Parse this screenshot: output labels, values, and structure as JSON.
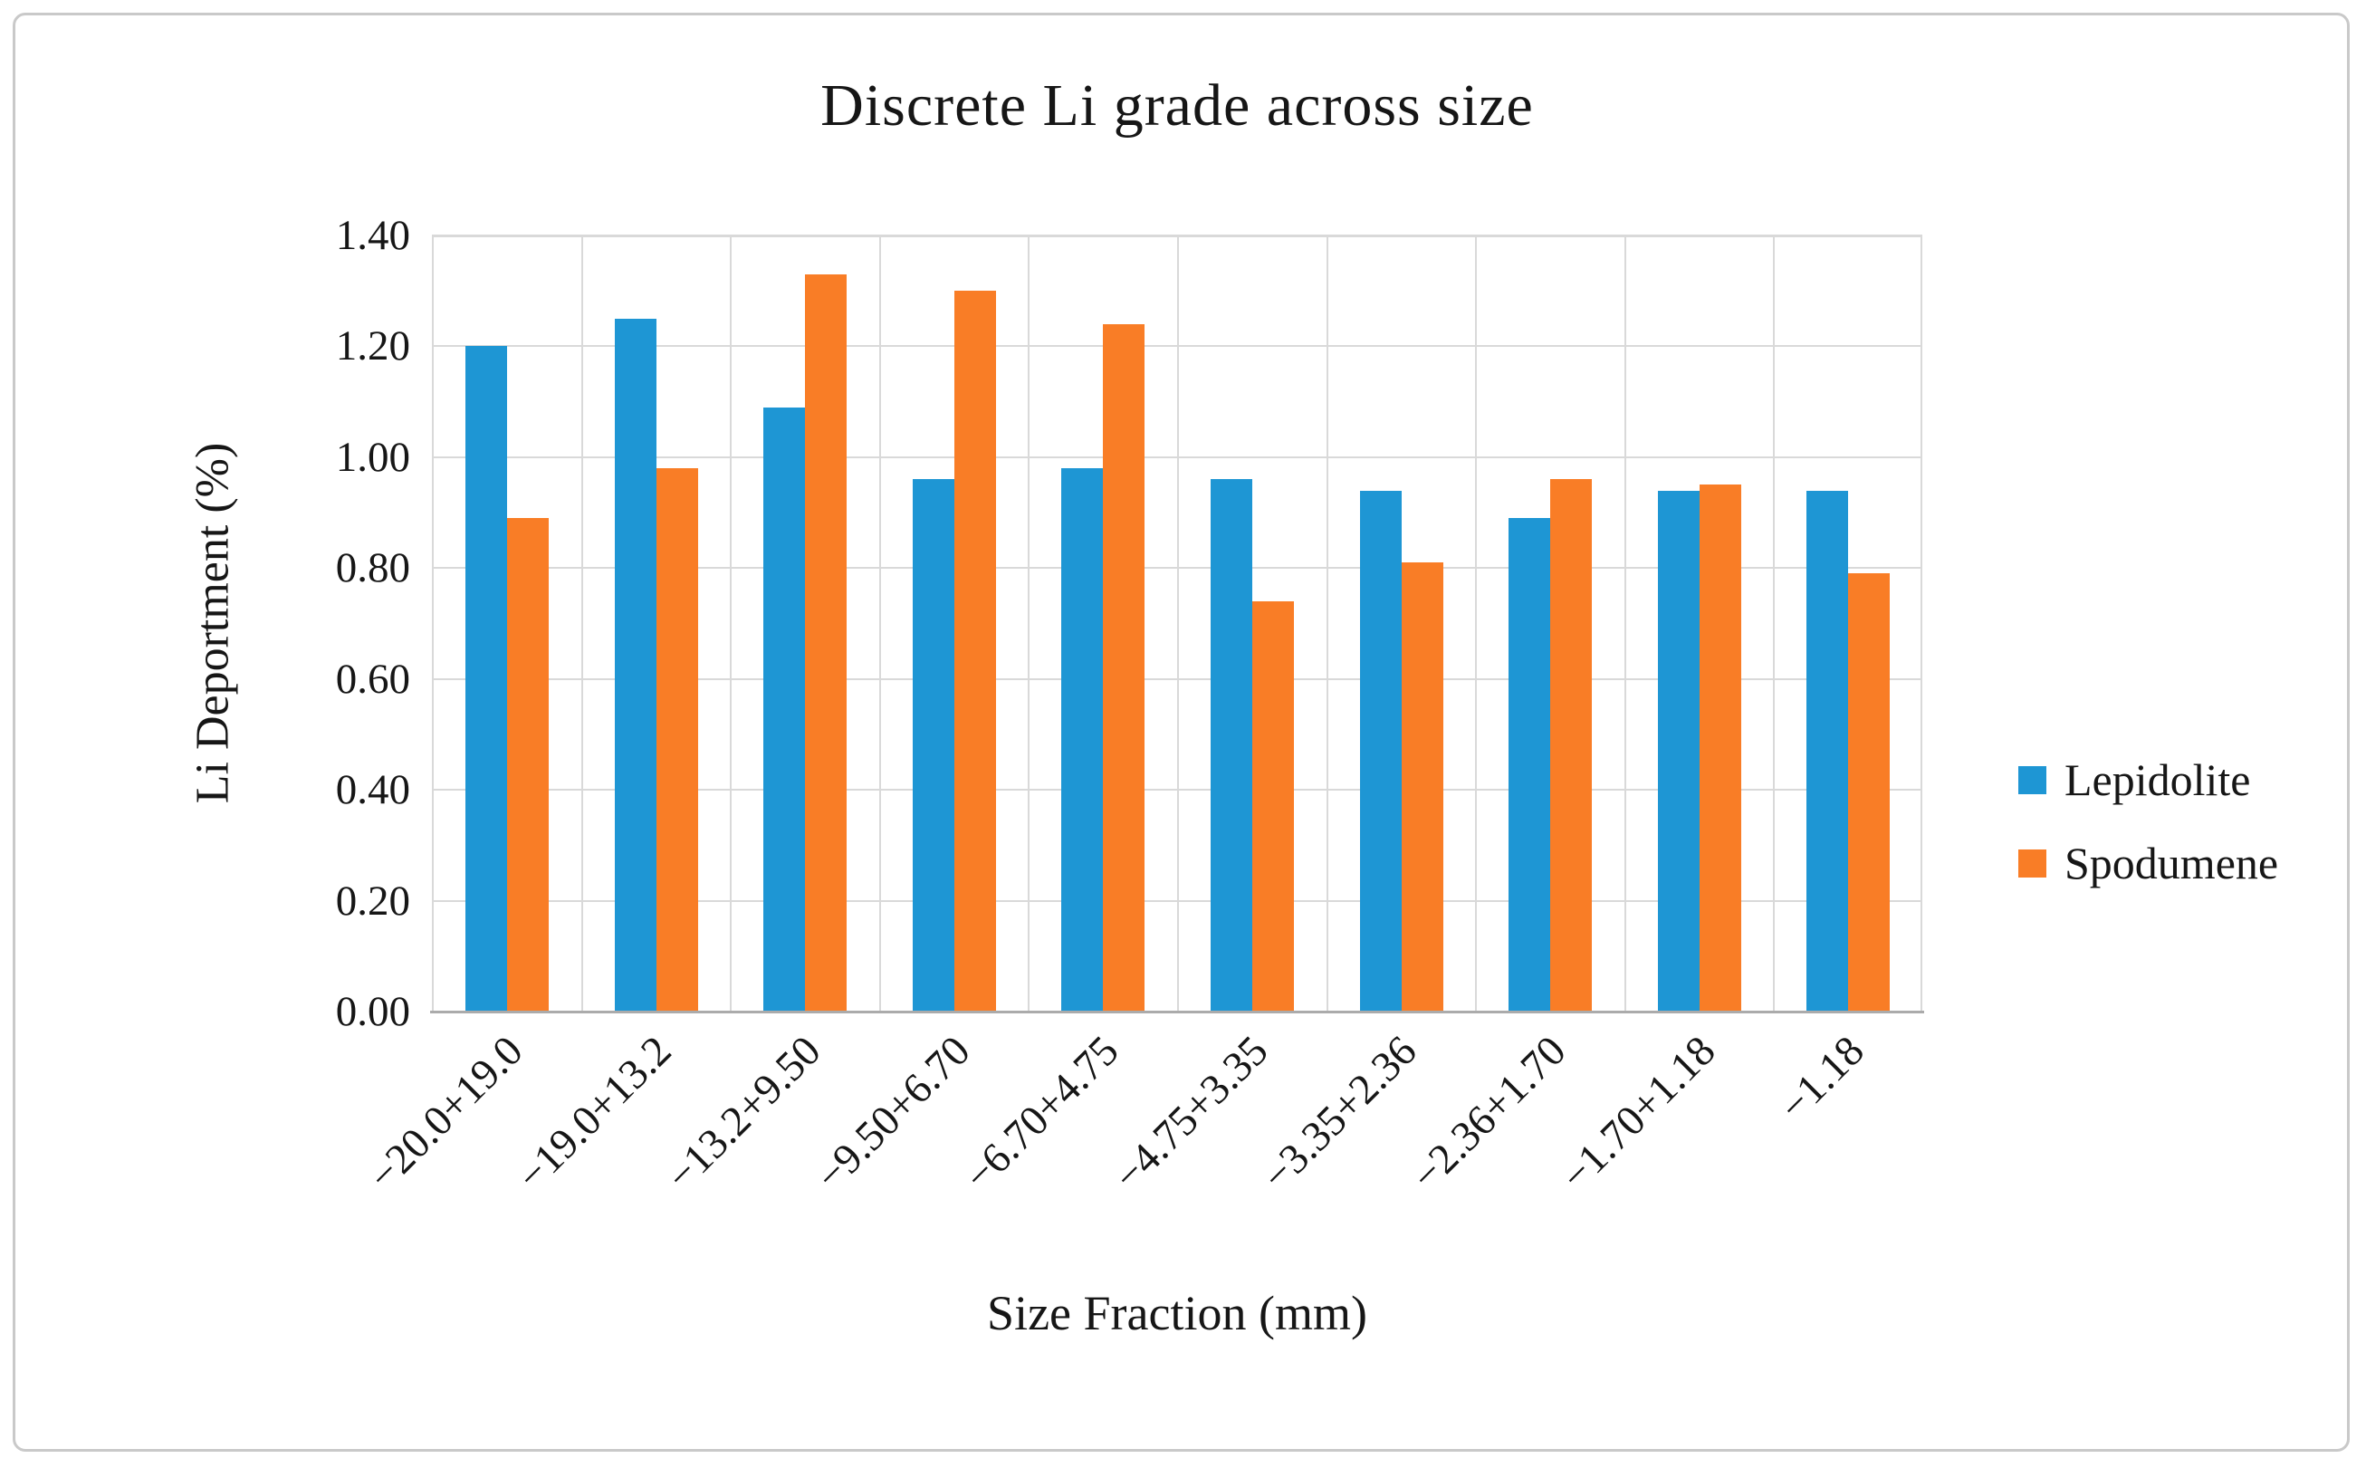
{
  "chart_data": {
    "type": "bar",
    "title": "Discrete Li grade across size",
    "xlabel": "Size Fraction (mm)",
    "ylabel": "Li Deportment (%)",
    "categories": [
      "−20.0+19.0",
      "−19.0+13.2",
      "−13.2+9.50",
      "−9.50+6.70",
      "−6.70+4.75",
      "−4.75+3.35",
      "−3.35+2.36",
      "−2.36+1.70",
      "−1.70+1.18",
      "−1.18"
    ],
    "series": [
      {
        "name": "Lepidolite",
        "color": "#1E96D4",
        "values": [
          1.2,
          1.25,
          1.09,
          0.96,
          0.98,
          0.96,
          0.94,
          0.89,
          0.94,
          0.94
        ]
      },
      {
        "name": "Spodumene",
        "color": "#F97D26",
        "values": [
          0.89,
          0.98,
          1.33,
          1.3,
          1.24,
          0.74,
          0.81,
          0.96,
          0.95,
          0.79
        ]
      }
    ],
    "ylim": [
      0.0,
      1.4
    ],
    "ytick_step": 0.2,
    "ytick_labels": [
      "0.00",
      "0.20",
      "0.40",
      "0.60",
      "0.80",
      "1.00",
      "1.20",
      "1.40"
    ],
    "grid": true,
    "legend_position": "right",
    "colors": {
      "gridline": "#d9d9d9",
      "axis_line": "#ababab",
      "text": "#161616",
      "figure_border": "#c9c9c9"
    }
  }
}
